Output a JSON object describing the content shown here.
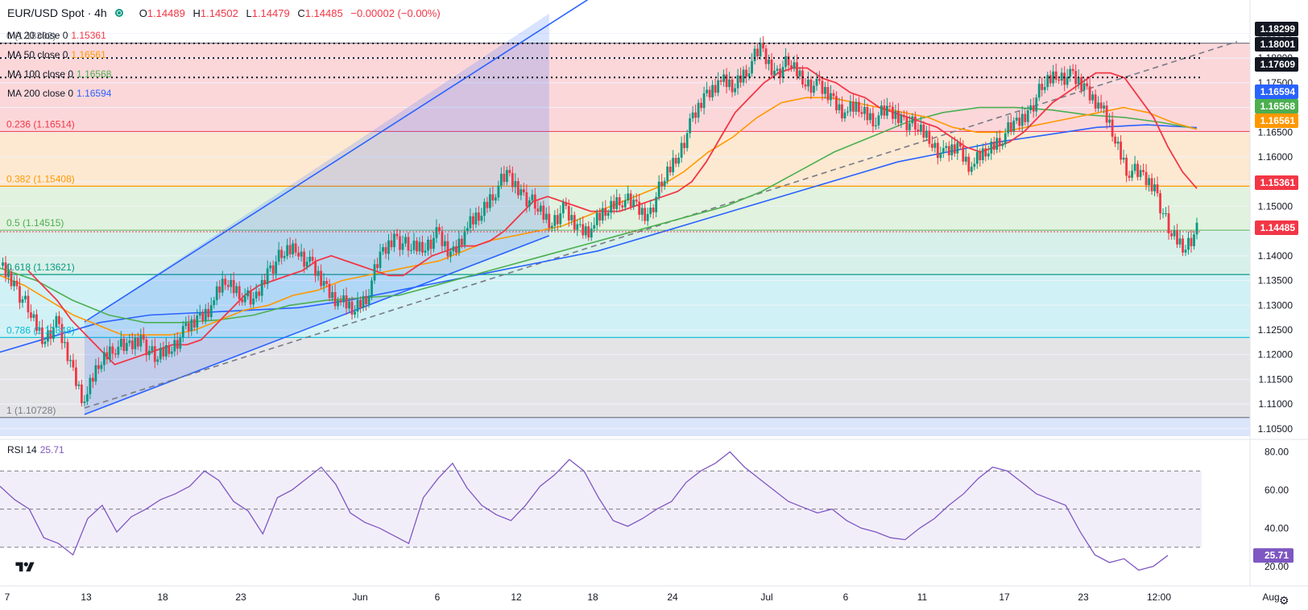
{
  "header": {
    "title": "EUR/USD Spot · 4h",
    "open_label": "O",
    "open": "1.14489",
    "high_label": "H",
    "high": "1.14502",
    "low_label": "L",
    "low": "1.14479",
    "close_label": "C",
    "close": "1.14485",
    "change": "−0.00002 (−0.00%)",
    "status_color": "#089981"
  },
  "ma_legend": [
    {
      "label": "MA 20 close 0",
      "value": "1.15361",
      "color": "#f23645"
    },
    {
      "label": "MA 50 close 0",
      "value": "1.16561",
      "color": "#ff9800"
    },
    {
      "label": "MA 100 close 0",
      "value": "1.16568",
      "color": "#4caf50"
    },
    {
      "label": "MA 200 close 0",
      "value": "1.16594",
      "color": "#2962ff"
    }
  ],
  "rsi_legend": {
    "label": "RSI 14",
    "value": "25.71",
    "color": "#7e57c2"
  },
  "chart_data": {
    "type": "candlestick",
    "symbol": "EUR/USD",
    "timeframe": "4h",
    "x_ticks": [
      "7",
      "13",
      "18",
      "23",
      "Jun",
      "6",
      "12",
      "18",
      "24",
      "Jul",
      "6",
      "11",
      "17",
      "23",
      "12:00",
      "Aug"
    ],
    "y_ticks": [
      "1.18500",
      "1.18000",
      "1.17500",
      "1.17000",
      "1.16500",
      "1.16000",
      "1.15500",
      "1.15000",
      "1.14500",
      "1.14000",
      "1.13500",
      "1.13000",
      "1.12500",
      "1.12000",
      "1.11500",
      "1.11000",
      "1.10500"
    ],
    "ylim": [
      1.1035,
      1.1885
    ],
    "price_tags": [
      {
        "value": "1.18299",
        "bg": "#131722"
      },
      {
        "value": "1.18001",
        "bg": "#131722"
      },
      {
        "value": "1.17609",
        "bg": "#131722"
      },
      {
        "value": "1.16594",
        "bg": "#2962ff"
      },
      {
        "value": "1.16568",
        "bg": "#4caf50"
      },
      {
        "value": "1.16561",
        "bg": "#ff9800"
      },
      {
        "value": "1.15361",
        "bg": "#f23645"
      },
      {
        "value": "1.14485",
        "bg": "#f23645"
      }
    ],
    "fib_levels": [
      {
        "label": "0 (1.18302)",
        "level": 1.18302,
        "color": "#787b86"
      },
      {
        "label": "0.236 (1.16514)",
        "level": 1.16514,
        "color": "#f23645"
      },
      {
        "label": "0.382 (1.15408)",
        "level": 1.15408,
        "color": "#ff9800"
      },
      {
        "label": "0.5 (1.14515)",
        "level": 1.14515,
        "color": "#4caf50"
      },
      {
        "label": "0.618 (1.13621)",
        "level": 1.13621,
        "color": "#089981"
      },
      {
        "label": "0.786 (1.12348)",
        "level": 1.12348,
        "color": "#00bcd4"
      },
      {
        "label": "1 (1.10728)",
        "level": 1.10728,
        "color": "#787b86"
      }
    ],
    "horizontal_levels": [
      1.18299,
      1.18001,
      1.17609
    ],
    "price_points": [
      1.138,
      1.1345,
      1.129,
      1.1235,
      1.126,
      1.118,
      1.1105,
      1.118,
      1.122,
      1.121,
      1.1235,
      1.119,
      1.1215,
      1.124,
      1.127,
      1.13,
      1.135,
      1.133,
      1.13,
      1.137,
      1.14,
      1.142,
      1.138,
      1.134,
      1.131,
      1.129,
      1.132,
      1.1395,
      1.144,
      1.1415,
      1.142,
      1.144,
      1.14,
      1.145,
      1.148,
      1.153,
      1.156,
      1.153,
      1.15,
      1.147,
      1.149,
      1.1455,
      1.1455,
      1.149,
      1.152,
      1.15,
      1.148,
      1.1545,
      1.16,
      1.166,
      1.172,
      1.1755,
      1.174,
      1.178,
      1.1815,
      1.177,
      1.179,
      1.176,
      1.174,
      1.172,
      1.169,
      1.17,
      1.168,
      1.169,
      1.168,
      1.166,
      1.164,
      1.16,
      1.162,
      1.158,
      1.161,
      1.164,
      1.166,
      1.169,
      1.174,
      1.177,
      1.176,
      1.174,
      1.171,
      1.165,
      1.158,
      1.156,
      1.154,
      1.145,
      1.142,
      1.1449
    ],
    "ma20": [
      1.137,
      1.134,
      1.131,
      1.127,
      1.124,
      1.121,
      1.118,
      1.119,
      1.12,
      1.121,
      1.122,
      1.122,
      1.123,
      1.126,
      1.129,
      1.132,
      1.134,
      1.135,
      1.136,
      1.137,
      1.139,
      1.14,
      1.139,
      1.138,
      1.137,
      1.136,
      1.136,
      1.138,
      1.14,
      1.141,
      1.142,
      1.142,
      1.143,
      1.145,
      1.148,
      1.151,
      1.152,
      1.151,
      1.15,
      1.149,
      1.149,
      1.149,
      1.15,
      1.151,
      1.152,
      1.153,
      1.155,
      1.159,
      1.164,
      1.169,
      1.172,
      1.175,
      1.177,
      1.178,
      1.178,
      1.176,
      1.175,
      1.173,
      1.172,
      1.17,
      1.169,
      1.168,
      1.167,
      1.166,
      1.164,
      1.162,
      1.161,
      1.162,
      1.163,
      1.165,
      1.168,
      1.171,
      1.173,
      1.175,
      1.177,
      1.177,
      1.176,
      1.172,
      1.168,
      1.162,
      1.157,
      1.1536
    ],
    "ma50": [
      1.136,
      1.134,
      1.131,
      1.128,
      1.126,
      1.124,
      1.124,
      1.124,
      1.125,
      1.127,
      1.129,
      1.13,
      1.132,
      1.133,
      1.135,
      1.136,
      1.137,
      1.138,
      1.139,
      1.141,
      1.143,
      1.144,
      1.145,
      1.146,
      1.148,
      1.15,
      1.152,
      1.154,
      1.157,
      1.161,
      1.164,
      1.168,
      1.171,
      1.172,
      1.172,
      1.171,
      1.17,
      1.169,
      1.168,
      1.166,
      1.165,
      1.165,
      1.166,
      1.167,
      1.168,
      1.169,
      1.17,
      1.169,
      1.167,
      1.16561
    ],
    "ma100": [
      1.1375,
      1.135,
      1.131,
      1.128,
      1.1265,
      1.1265,
      1.127,
      1.128,
      1.13,
      1.131,
      1.1315,
      1.132,
      1.134,
      1.136,
      1.138,
      1.14,
      1.142,
      1.144,
      1.146,
      1.148,
      1.15,
      1.153,
      1.157,
      1.161,
      1.164,
      1.167,
      1.169,
      1.17,
      1.17,
      1.1695,
      1.1685,
      1.168,
      1.167,
      1.16568
    ],
    "ma200": [
      1.1205,
      1.1235,
      1.1265,
      1.128,
      1.1285,
      1.129,
      1.1295,
      1.131,
      1.133,
      1.135,
      1.137,
      1.139,
      1.141,
      1.144,
      1.147,
      1.15,
      1.153,
      1.156,
      1.159,
      1.161,
      1.163,
      1.1645,
      1.166,
      1.1665,
      1.16594
    ],
    "rsi": {
      "name": "RSI 14",
      "current": 25.71,
      "ylim": [
        14,
        84
      ],
      "y_ticks": [
        "80.00",
        "60.00",
        "40.00",
        "20.00"
      ],
      "bands": [
        70,
        50,
        30
      ],
      "values": [
        62,
        55,
        50,
        35,
        32,
        26,
        45,
        52,
        38,
        46,
        50,
        55,
        58,
        62,
        70,
        65,
        54,
        49,
        37,
        56,
        60,
        66,
        72,
        63,
        48,
        43,
        40,
        36,
        32,
        56,
        66,
        74,
        61,
        52,
        47,
        44,
        52,
        62,
        68,
        76,
        70,
        56,
        44,
        41,
        45,
        50,
        54,
        64,
        70,
        74,
        80,
        72,
        66,
        60,
        54,
        51,
        48,
        50,
        44,
        40,
        38,
        35,
        34,
        40,
        45,
        52,
        58,
        66,
        72,
        70,
        64,
        58,
        55,
        52,
        38,
        26,
        22,
        24,
        18,
        20,
        25.71
      ]
    }
  }
}
